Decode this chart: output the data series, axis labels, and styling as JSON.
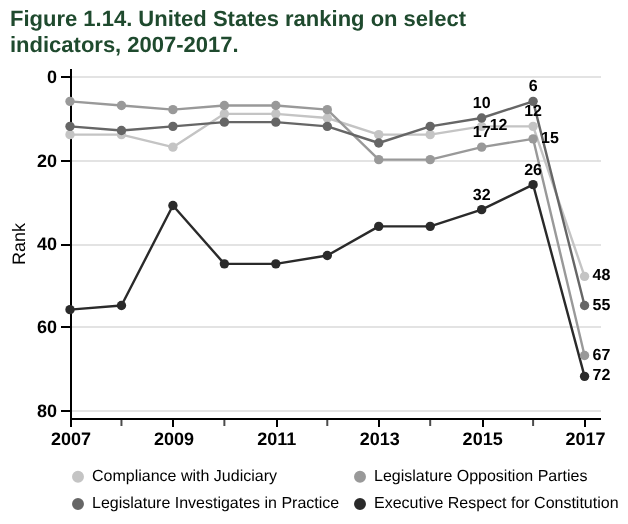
{
  "chart_data": {
    "type": "line",
    "title": "Figure 1.14. United States ranking on select indicators, 2007-2017.",
    "ylabel": "Rank",
    "x": [
      2007,
      2008,
      2009,
      2010,
      2011,
      2012,
      2013,
      2014,
      2015,
      2016,
      2017
    ],
    "xlim": [
      2007,
      2017.3
    ],
    "xticks": [
      2007,
      {
        "value": 2008,
        "label": null
      },
      2009,
      {
        "value": 2010,
        "label": null
      },
      2011,
      {
        "value": 2012,
        "label": null
      },
      2013,
      {
        "value": 2014,
        "label": null
      },
      2015,
      {
        "value": 2016,
        "label": null
      },
      2017
    ],
    "ylim": [
      82,
      -2
    ],
    "yticks": [
      0,
      20,
      40,
      60,
      80
    ],
    "grid": "y",
    "legend": "bottom",
    "marker": "circle",
    "line_style": "solid",
    "series": [
      {
        "name": "Compliance with Judiciary",
        "color": "#c4c4c4",
        "values": [
          14,
          14,
          17,
          9,
          9,
          10,
          14,
          14,
          12,
          12,
          48
        ],
        "value_labels": [
          null,
          null,
          null,
          null,
          null,
          null,
          null,
          null,
          "12",
          "12",
          "48"
        ]
      },
      {
        "name": "Legislature Opposition Parties",
        "color": "#999999",
        "values": [
          6,
          7,
          8,
          7,
          7,
          8,
          20,
          20,
          17,
          15,
          67
        ],
        "value_labels": [
          null,
          null,
          null,
          null,
          null,
          null,
          null,
          null,
          "17",
          "15",
          "67"
        ]
      },
      {
        "name": "Legislature Investigates in Practice",
        "color": "#666666",
        "values": [
          12,
          13,
          12,
          11,
          11,
          12,
          16,
          12,
          10,
          6,
          55
        ],
        "value_labels": [
          null,
          null,
          null,
          null,
          null,
          null,
          null,
          null,
          "10",
          "6",
          "55"
        ]
      },
      {
        "name": "Executive Respect for Constitution",
        "color": "#2a2a2a",
        "values": [
          56,
          55,
          31,
          45,
          45,
          43,
          36,
          36,
          32,
          26,
          72
        ],
        "value_labels": [
          null,
          null,
          null,
          null,
          null,
          null,
          null,
          null,
          "32",
          "26",
          "72"
        ]
      }
    ]
  }
}
